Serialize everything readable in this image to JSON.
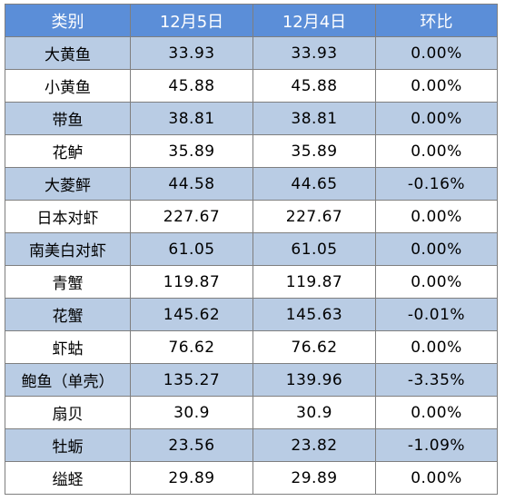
{
  "table": {
    "headers": [
      "类别",
      "12月5日",
      "12月4日",
      "环比"
    ],
    "rows": [
      [
        "大黄鱼",
        "33.93",
        "33.93",
        "0.00%"
      ],
      [
        "小黄鱼",
        "45.88",
        "45.88",
        "0.00%"
      ],
      [
        "带鱼",
        "38.81",
        "38.81",
        "0.00%"
      ],
      [
        "花鲈",
        "35.89",
        "35.89",
        "0.00%"
      ],
      [
        "大菱鲆",
        "44.58",
        "44.65",
        "-0.16%"
      ],
      [
        "日本对虾",
        "227.67",
        "227.67",
        "0.00%"
      ],
      [
        "南美白对虾",
        "61.05",
        "61.05",
        "0.00%"
      ],
      [
        "青蟹",
        "119.87",
        "119.87",
        "0.00%"
      ],
      [
        "花蟹",
        "145.62",
        "145.63",
        "-0.01%"
      ],
      [
        "虾蛄",
        "76.62",
        "76.62",
        "0.00%"
      ],
      [
        "鲍鱼（单壳）",
        "135.27",
        "139.96",
        "-3.35%"
      ],
      [
        "扇贝",
        "30.9",
        "30.9",
        "0.00%"
      ],
      [
        "牡蛎",
        "23.56",
        "23.82",
        "-1.09%"
      ],
      [
        "缢蛏",
        "29.89",
        "29.89",
        "0.00%"
      ]
    ]
  },
  "colors": {
    "header_bg": "#5b8ed8",
    "header_text": "#ffffff",
    "alt_row_bg": "#b9cce4",
    "plain_row_bg": "#ffffff",
    "border": "#7f7f7f"
  }
}
